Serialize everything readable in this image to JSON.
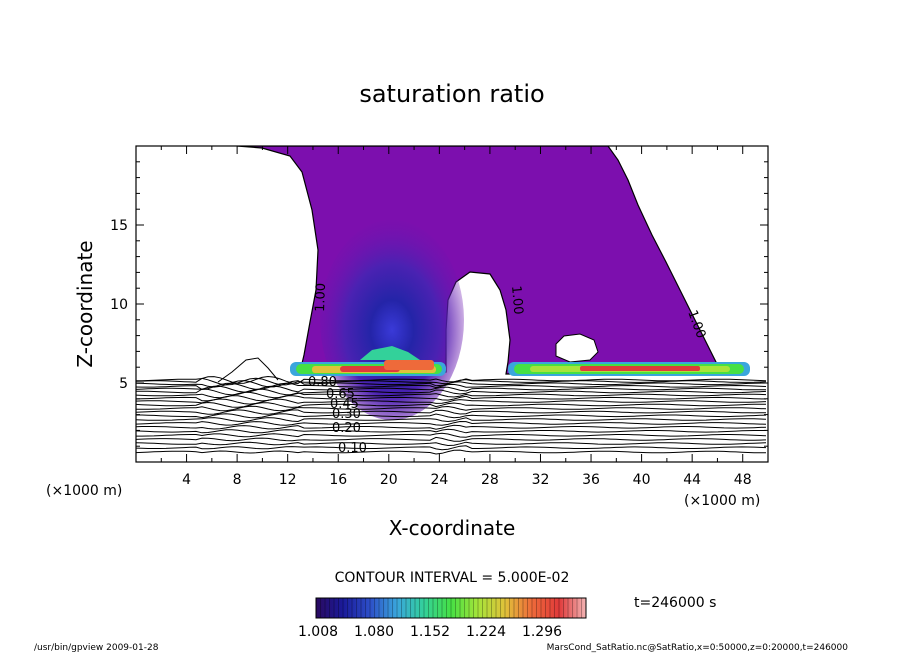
{
  "chart_data": {
    "type": "heatmap",
    "title": "saturation ratio",
    "xlabel": "X-coordinate",
    "ylabel": "Z-coordinate",
    "x_unit": "(×1000 m)",
    "z_unit": "(×1000 m)",
    "xlim": [
      0,
      50
    ],
    "ylim": [
      0,
      20
    ],
    "x_ticks": [
      4,
      8,
      12,
      16,
      20,
      24,
      28,
      32,
      36,
      40,
      44,
      48
    ],
    "y_ticks": [
      5,
      10,
      15
    ],
    "contour_interval_text": "CONTOUR INTERVAL = 5.000E-02",
    "contour_labels": [
      "1.00",
      "1.00",
      "1.00",
      "0.80",
      "0.65",
      "0.45",
      "0.30",
      "0.20",
      "0.10"
    ],
    "colorbar": {
      "ticks": [
        "1.008",
        "1.080",
        "1.152",
        "1.224",
        "1.296"
      ],
      "colors": [
        "#2a0a60",
        "#1a1a9a",
        "#2d4fc8",
        "#3aa6dc",
        "#33d19a",
        "#46e044",
        "#a6e43a",
        "#e0c23a",
        "#ee6a3a",
        "#e03a3a",
        "#f2b4b4"
      ]
    },
    "time_label": "t=246000 s"
  },
  "footer": {
    "left": "/usr/bin/gpview  2009-01-28",
    "right": "MarsCond_SatRatio.nc@SatRatio,x=0:50000,z=0:20000,t=246000"
  },
  "colors": {
    "saturated_fill": "#7c0fae",
    "frame": "#000000"
  }
}
